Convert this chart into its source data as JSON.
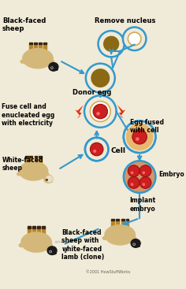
{
  "bg_color": "#f0ead8",
  "copyright": "©2001 HowStuffWorks",
  "labels": {
    "black_faced_sheep": "Black-faced\nsheep",
    "remove_nucleus": "Remove nucleus",
    "donor_egg": "Donor egg",
    "fuse_cell": "Fuse cell and\nenucleated egg\nwith electricity",
    "cell": "Cell",
    "white_faced_sheep": "White-faced\nsheep",
    "egg_fused": "Egg fused\nwith cell",
    "embryo": "Embryo",
    "implant_embryo": "Implant\nembryo",
    "clone_label": "Black-faced\nsheep with\nwhite-faced\nlamb (clone)"
  },
  "arrow_color": "#3399cc",
  "egg_border_color": "#3399cc",
  "nucleus_color": "#8B6914",
  "nucleus_dark": "#6B4A0A",
  "cell_color": "#cc2020",
  "cell_edge": "#991010",
  "embryo_bg": "#d4956a",
  "embryo_border": "#3399cc",
  "lightning_color": "#dd3311",
  "sheep_body": "#d4b87a",
  "sheep_leg": "#b8872a",
  "sheep_hoof": "#3a2510",
  "black_face": "#1a1a1a",
  "white_face": "#e8e0c8",
  "lamb_body": "#f0ede0",
  "lamb_leg": "#d0cdb8",
  "egg_bg": "#f0ead8",
  "egg_inner_ring": "#d4aa55"
}
